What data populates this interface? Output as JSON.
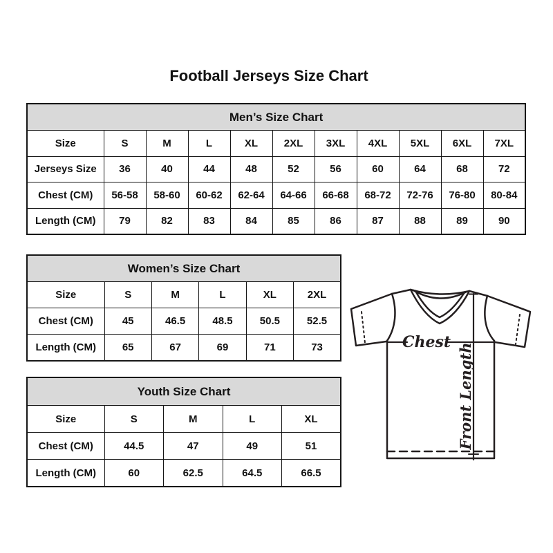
{
  "page": {
    "title": "Football Jerseys Size Chart"
  },
  "colors": {
    "table_header_bg": "#d9d9d9",
    "table_border": "#161616",
    "text": "#121212",
    "diagram_stroke": "#241f20"
  },
  "tables": {
    "mens": {
      "title": "Men’s Size Chart",
      "rows": [
        [
          "Size",
          "S",
          "M",
          "L",
          "XL",
          "2XL",
          "3XL",
          "4XL",
          "5XL",
          "6XL",
          "7XL"
        ],
        [
          "Jerseys Size",
          "36",
          "40",
          "44",
          "48",
          "52",
          "56",
          "60",
          "64",
          "68",
          "72"
        ],
        [
          "Chest (CM)",
          "56-58",
          "58-60",
          "60-62",
          "62-64",
          "64-66",
          "66-68",
          "68-72",
          "72-76",
          "76-80",
          "80-84"
        ],
        [
          "Length (CM)",
          "79",
          "82",
          "83",
          "84",
          "85",
          "86",
          "87",
          "88",
          "89",
          "90"
        ]
      ]
    },
    "womens": {
      "title": "Women’s Size Chart",
      "rows": [
        [
          "Size",
          "S",
          "M",
          "L",
          "XL",
          "2XL"
        ],
        [
          "Chest (CM)",
          "45",
          "46.5",
          "48.5",
          "50.5",
          "52.5"
        ],
        [
          "Length (CM)",
          "65",
          "67",
          "69",
          "71",
          "73"
        ]
      ]
    },
    "youth": {
      "title": "Youth Size Chart",
      "rows": [
        [
          "Size",
          "S",
          "M",
          "L",
          "XL"
        ],
        [
          "Chest (CM)",
          "44.5",
          "47",
          "49",
          "51"
        ],
        [
          "Length (CM)",
          "60",
          "62.5",
          "64.5",
          "66.5"
        ]
      ]
    }
  },
  "diagram": {
    "chest_label": "Chest",
    "front_length_label": "Front Length"
  }
}
